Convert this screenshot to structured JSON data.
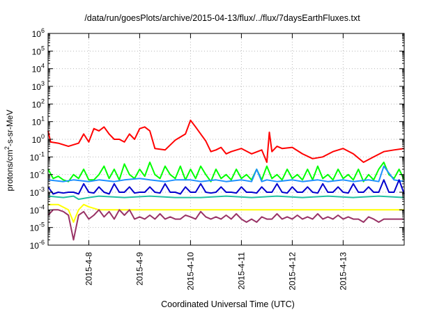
{
  "chart_data": {
    "type": "line",
    "title": "/data/run/goesPlots/archive/2015-04-13/flux/../flux/7daysEarthFluxes.txt",
    "xlabel": "Coordinated Universal Time (UTC)",
    "ylabel_parts": [
      "protons/cm",
      "2",
      "-s-sr-MeV"
    ],
    "yscale": "log",
    "ylim": [
      1e-06,
      1000000.0
    ],
    "xlim": [
      7.0,
      14.0
    ],
    "grid": true,
    "x_ticks": [
      {
        "x": 7.8,
        "label": "2015-4-8"
      },
      {
        "x": 8.8,
        "label": "2015-4-9"
      },
      {
        "x": 9.8,
        "label": "2015-4-10"
      },
      {
        "x": 10.8,
        "label": "2015-4-11"
      },
      {
        "x": 11.8,
        "label": "2015-4-12"
      },
      {
        "x": 12.8,
        "label": "2015-4-13"
      }
    ],
    "y_ticks": [
      {
        "exp": -6,
        "base": "10",
        "power": "-6"
      },
      {
        "exp": -5,
        "base": "10",
        "power": "-5"
      },
      {
        "exp": -4,
        "base": "10",
        "power": "-4"
      },
      {
        "exp": -3,
        "base": "10",
        "power": "-3"
      },
      {
        "exp": -2,
        "base": "10",
        "power": "-2"
      },
      {
        "exp": -1,
        "base": "10",
        "power": "-1"
      },
      {
        "exp": 0,
        "base": "10",
        "power": "0"
      },
      {
        "exp": 1,
        "base": "10",
        "power": "1"
      },
      {
        "exp": 2,
        "base": "10",
        "power": "2"
      },
      {
        "exp": 3,
        "base": "10",
        "power": "3"
      },
      {
        "exp": 4,
        "base": "10",
        "power": "4"
      },
      {
        "exp": 5,
        "base": "10",
        "power": "5"
      },
      {
        "exp": 6,
        "base": "10",
        "power": "6"
      }
    ],
    "series": [
      {
        "color": "#ff0000",
        "x": [
          7.0,
          7.05,
          7.2,
          7.4,
          7.6,
          7.7,
          7.8,
          7.9,
          8.0,
          8.1,
          8.2,
          8.3,
          8.4,
          8.5,
          8.6,
          8.7,
          8.8,
          8.9,
          9.0,
          9.1,
          9.3,
          9.5,
          9.7,
          9.8,
          9.9,
          10.0,
          10.1,
          10.2,
          10.3,
          10.4,
          10.5,
          10.6,
          10.8,
          11.0,
          11.2,
          11.3,
          11.35,
          11.4,
          11.5,
          11.6,
          11.8,
          12.0,
          12.2,
          12.4,
          12.6,
          12.8,
          13.0,
          13.2,
          13.4,
          13.6,
          13.8,
          14.0
        ],
        "y": [
          3,
          0.7,
          0.6,
          0.4,
          0.6,
          2,
          0.7,
          4,
          3,
          5,
          2,
          1,
          1,
          0.7,
          2,
          1,
          4,
          5,
          3,
          0.3,
          0.25,
          0.9,
          2,
          12,
          5,
          2,
          0.8,
          0.2,
          0.25,
          0.35,
          0.15,
          0.2,
          0.3,
          0.15,
          0.25,
          0.05,
          2.5,
          0.2,
          0.4,
          0.3,
          0.35,
          0.15,
          0.08,
          0.1,
          0.2,
          0.3,
          0.15,
          0.05,
          0.1,
          0.2,
          0.25,
          0.3
        ]
      },
      {
        "color": "#00ff00",
        "x": [
          7.0,
          7.1,
          7.2,
          7.3,
          7.4,
          7.5,
          7.6,
          7.7,
          7.8,
          7.9,
          8.0,
          8.1,
          8.2,
          8.3,
          8.4,
          8.5,
          8.6,
          8.7,
          8.8,
          8.9,
          9.0,
          9.1,
          9.2,
          9.3,
          9.4,
          9.5,
          9.6,
          9.7,
          9.8,
          9.9,
          10.0,
          10.1,
          10.2,
          10.3,
          10.4,
          10.5,
          10.6,
          10.7,
          10.8,
          10.9,
          11.0,
          11.1,
          11.2,
          11.3,
          11.4,
          11.5,
          11.6,
          11.7,
          11.8,
          11.9,
          12.0,
          12.1,
          12.2,
          12.3,
          12.4,
          12.5,
          12.6,
          12.7,
          12.8,
          12.9,
          13.0,
          13.1,
          13.2,
          13.3,
          13.4,
          13.5,
          13.6,
          13.7,
          13.8,
          13.9,
          14.0
        ],
        "y": [
          0.02,
          0.006,
          0.008,
          0.005,
          0.004,
          0.01,
          0.006,
          0.02,
          0.005,
          0.005,
          0.01,
          0.03,
          0.006,
          0.02,
          0.005,
          0.04,
          0.01,
          0.006,
          0.02,
          0.008,
          0.05,
          0.01,
          0.006,
          0.03,
          0.01,
          0.006,
          0.03,
          0.005,
          0.02,
          0.006,
          0.03,
          0.01,
          0.004,
          0.02,
          0.006,
          0.01,
          0.005,
          0.02,
          0.006,
          0.01,
          0.005,
          0.02,
          0.005,
          0.03,
          0.006,
          0.01,
          0.005,
          0.02,
          0.006,
          0.01,
          0.005,
          0.02,
          0.005,
          0.03,
          0.006,
          0.01,
          0.005,
          0.02,
          0.006,
          0.01,
          0.005,
          0.02,
          0.004,
          0.01,
          0.005,
          0.02,
          0.05,
          0.01,
          0.006,
          0.02,
          0.005
        ]
      },
      {
        "color": "#1e90ff",
        "x": [
          7.0,
          7.3,
          7.5,
          7.8,
          8.0,
          8.3,
          8.5,
          8.8,
          9.0,
          9.3,
          9.5,
          9.8,
          10.0,
          10.3,
          10.5,
          10.8,
          11.0,
          11.1,
          11.2,
          11.3,
          11.5,
          11.8,
          12.0,
          12.3,
          12.5,
          12.8,
          13.0,
          13.3,
          13.5,
          13.6,
          13.8,
          14.0
        ],
        "y": [
          0.005,
          0.004,
          0.005,
          0.004,
          0.005,
          0.004,
          0.005,
          0.006,
          0.005,
          0.004,
          0.005,
          0.005,
          0.004,
          0.005,
          0.004,
          0.005,
          0.004,
          0.02,
          0.004,
          0.005,
          0.004,
          0.005,
          0.004,
          0.005,
          0.004,
          0.005,
          0.004,
          0.005,
          0.004,
          0.03,
          0.005,
          0.004
        ]
      },
      {
        "color": "#0000cd",
        "x": [
          7.0,
          7.1,
          7.2,
          7.3,
          7.4,
          7.5,
          7.6,
          7.7,
          7.8,
          7.9,
          8.0,
          8.1,
          8.2,
          8.3,
          8.4,
          8.5,
          8.6,
          8.7,
          8.8,
          8.9,
          9.0,
          9.1,
          9.2,
          9.3,
          9.4,
          9.5,
          9.6,
          9.7,
          9.8,
          9.9,
          10.0,
          10.1,
          10.2,
          10.3,
          10.4,
          10.5,
          10.6,
          10.7,
          10.8,
          10.9,
          11.0,
          11.1,
          11.2,
          11.3,
          11.4,
          11.5,
          11.6,
          11.7,
          11.8,
          11.9,
          12.0,
          12.1,
          12.2,
          12.3,
          12.4,
          12.5,
          12.6,
          12.7,
          12.8,
          12.9,
          13.0,
          13.1,
          13.2,
          13.3,
          13.4,
          13.5,
          13.6,
          13.7,
          13.8,
          13.9,
          14.0
        ],
        "y": [
          0.002,
          0.0008,
          0.001,
          0.0009,
          0.001,
          0.001,
          0.0008,
          0.003,
          0.001,
          0.0009,
          0.002,
          0.001,
          0.0008,
          0.003,
          0.001,
          0.001,
          0.002,
          0.0009,
          0.001,
          0.001,
          0.002,
          0.001,
          0.0009,
          0.003,
          0.001,
          0.001,
          0.0008,
          0.002,
          0.001,
          0.001,
          0.003,
          0.001,
          0.0009,
          0.001,
          0.002,
          0.001,
          0.001,
          0.0009,
          0.002,
          0.001,
          0.001,
          0.0009,
          0.002,
          0.001,
          0.001,
          0.003,
          0.001,
          0.0009,
          0.002,
          0.001,
          0.001,
          0.002,
          0.001,
          0.0009,
          0.003,
          0.001,
          0.001,
          0.002,
          0.001,
          0.0009,
          0.003,
          0.001,
          0.001,
          0.002,
          0.001,
          0.001,
          0.005,
          0.001,
          0.001,
          0.005,
          0.0008
        ]
      },
      {
        "color": "#20c0a0",
        "x": [
          7.0,
          7.3,
          7.5,
          7.6,
          7.8,
          8.0,
          8.5,
          9.0,
          9.5,
          10.0,
          10.5,
          11.0,
          11.5,
          12.0,
          12.5,
          13.0,
          13.5,
          14.0
        ],
        "y": [
          0.0006,
          0.0005,
          0.0006,
          0.0004,
          0.0005,
          0.0006,
          0.0005,
          0.0006,
          0.0005,
          0.0005,
          0.0006,
          0.0005,
          0.0006,
          0.0005,
          0.0006,
          0.0005,
          0.0006,
          0.0005
        ]
      },
      {
        "color": "#ffff00",
        "x": [
          7.0,
          7.2,
          7.4,
          7.5,
          7.6,
          7.7,
          7.8,
          8.0,
          8.5,
          9.0,
          9.5,
          10.0,
          10.5,
          11.0,
          11.5,
          12.0,
          12.5,
          13.0,
          13.5,
          14.0
        ],
        "y": [
          0.0002,
          0.0002,
          0.0001,
          2e-05,
          0.0001,
          0.0002,
          0.00015,
          0.0001,
          0.0001,
          0.0001,
          0.0001,
          0.0001,
          0.0001,
          0.0001,
          0.0001,
          0.0001,
          0.0001,
          0.0001,
          0.0001,
          0.0001
        ]
      },
      {
        "color": "#993366",
        "x": [
          7.0,
          7.1,
          7.2,
          7.3,
          7.4,
          7.5,
          7.6,
          7.7,
          7.8,
          7.9,
          8.0,
          8.1,
          8.2,
          8.3,
          8.4,
          8.5,
          8.6,
          8.7,
          8.8,
          8.9,
          9.0,
          9.1,
          9.2,
          9.3,
          9.4,
          9.5,
          9.6,
          9.7,
          9.8,
          9.9,
          10.0,
          10.1,
          10.2,
          10.3,
          10.4,
          10.5,
          10.6,
          10.7,
          10.8,
          10.9,
          11.0,
          11.1,
          11.2,
          11.3,
          11.4,
          11.5,
          11.6,
          11.7,
          11.8,
          11.9,
          12.0,
          12.1,
          12.2,
          12.3,
          12.4,
          12.5,
          12.6,
          12.7,
          12.8,
          12.9,
          13.0,
          13.1,
          13.2,
          13.3,
          13.4,
          13.5,
          13.6,
          13.7,
          13.8,
          13.9,
          14.0
        ],
        "y": [
          5e-05,
          0.0001,
          0.0001,
          8e-05,
          5e-05,
          2e-06,
          5e-05,
          8e-05,
          3e-05,
          5e-05,
          0.0001,
          4e-05,
          8e-05,
          3e-05,
          0.0001,
          5e-05,
          0.0001,
          3e-05,
          4e-05,
          3e-05,
          5e-05,
          3e-05,
          6e-05,
          3e-05,
          4e-05,
          3e-05,
          3e-05,
          5e-05,
          4e-05,
          3e-05,
          8e-05,
          4e-05,
          3e-05,
          4e-05,
          3e-05,
          5e-05,
          3e-05,
          6e-05,
          3e-05,
          2e-05,
          3e-05,
          2e-05,
          4e-05,
          3e-05,
          3e-05,
          6e-05,
          3e-05,
          4e-05,
          3e-05,
          5e-05,
          3e-05,
          4e-05,
          3e-05,
          6e-05,
          3e-05,
          4e-05,
          3e-05,
          5e-05,
          3e-05,
          4e-05,
          3e-05,
          3e-05,
          2e-05,
          4e-05,
          3e-05,
          2e-05,
          3e-05,
          3e-05,
          3e-05,
          3e-05,
          3e-05
        ]
      }
    ]
  }
}
